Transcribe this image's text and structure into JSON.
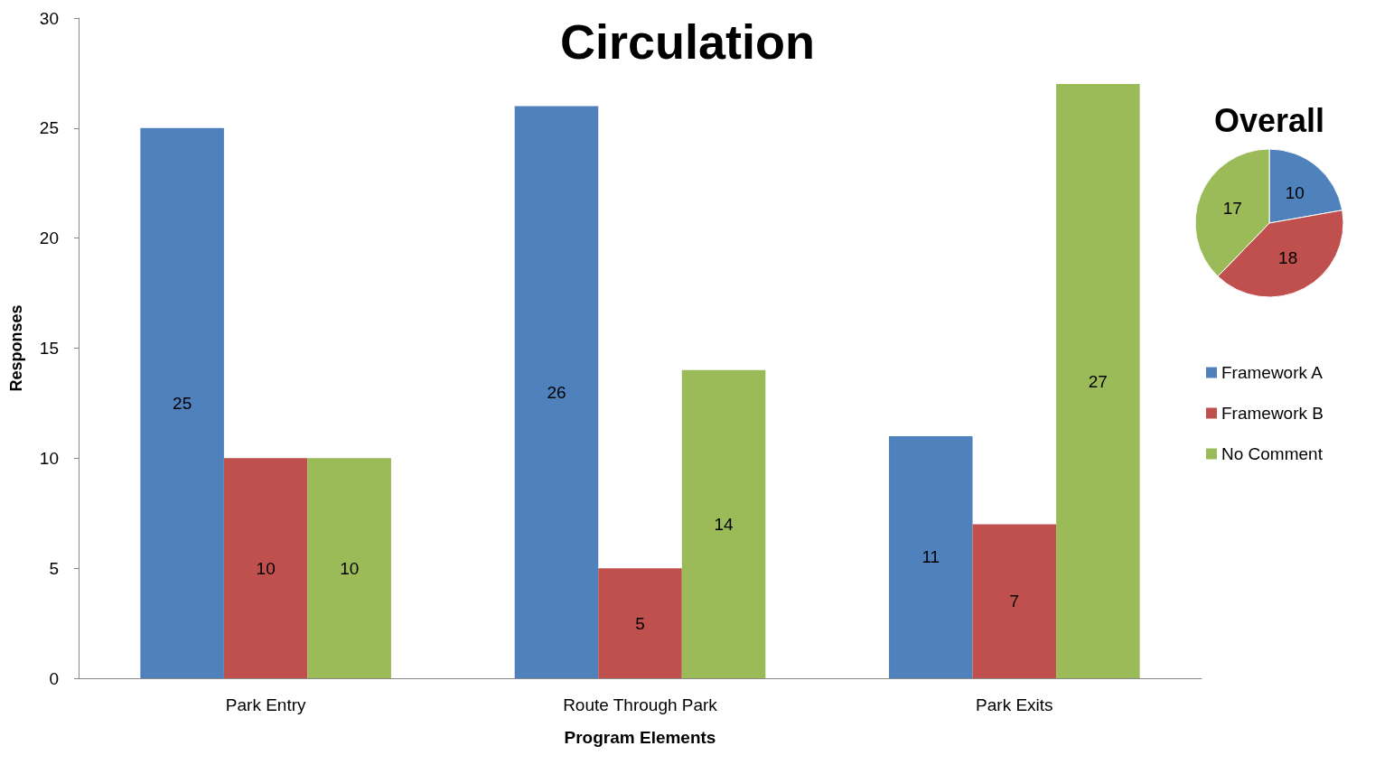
{
  "chart_data": [
    {
      "type": "bar",
      "title": "Circulation",
      "xlabel": "Program Elements",
      "ylabel": "Responses",
      "categories": [
        "Park Entry",
        "Route Through Park",
        "Park Exits"
      ],
      "series": [
        {
          "name": "Framework A",
          "color": "#4f81bd",
          "values": [
            25,
            26,
            11
          ]
        },
        {
          "name": "Framework B",
          "color": "#c0504d",
          "values": [
            10,
            5,
            7
          ]
        },
        {
          "name": "No Comment",
          "color": "#9bbb59",
          "values": [
            10,
            14,
            27
          ]
        }
      ],
      "ylim": [
        0,
        30
      ],
      "yticks": [
        0,
        5,
        10,
        15,
        20,
        25,
        30
      ],
      "grid": false,
      "legend": "right",
      "data_labels": true
    },
    {
      "type": "pie",
      "title": "Overall",
      "categories": [
        null,
        null,
        null
      ],
      "values": [
        10,
        18,
        17
      ],
      "colors": [
        "#4f81bd",
        "#c0504d",
        "#9bbb59"
      ],
      "data_labels": true
    }
  ]
}
